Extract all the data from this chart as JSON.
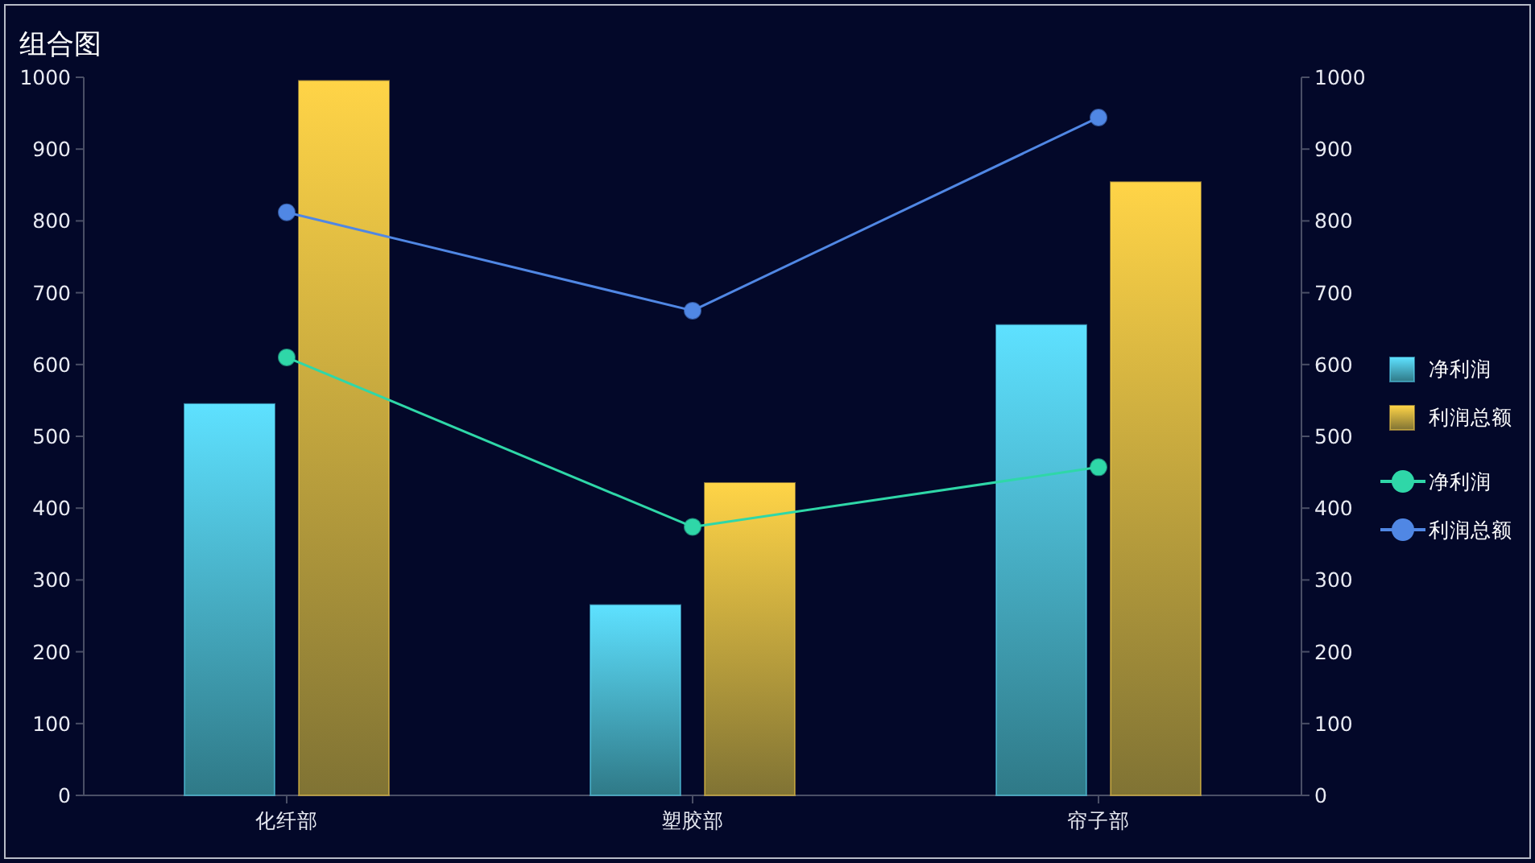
{
  "chart_data": {
    "type": "bar",
    "title": "组合图",
    "categories": [
      "化纤部",
      "塑胶部",
      "帘子部"
    ],
    "series": [
      {
        "name": "净利润",
        "color": "#5ee1ff",
        "values": [
          545,
          265,
          655
        ]
      },
      {
        "name": "利润总额",
        "color": "#ffd447",
        "values": [
          995,
          435,
          854
        ]
      },
      {
        "name": "净利润",
        "type": "line",
        "color": "#2fd7a8",
        "values": [
          610,
          374,
          457
        ]
      },
      {
        "name": "利润总额",
        "type": "line",
        "color": "#5087e4",
        "values": [
          812,
          675,
          944
        ]
      }
    ],
    "ylim": [
      0,
      1000
    ],
    "yticks": [
      0,
      100,
      200,
      300,
      400,
      500,
      600,
      700,
      800,
      900,
      1000
    ],
    "y2lim": [
      0,
      1000
    ],
    "y2ticks": [
      0,
      100,
      200,
      300,
      400,
      500,
      600,
      700,
      800,
      900,
      1000
    ],
    "legend": "right",
    "marker": "circle"
  }
}
